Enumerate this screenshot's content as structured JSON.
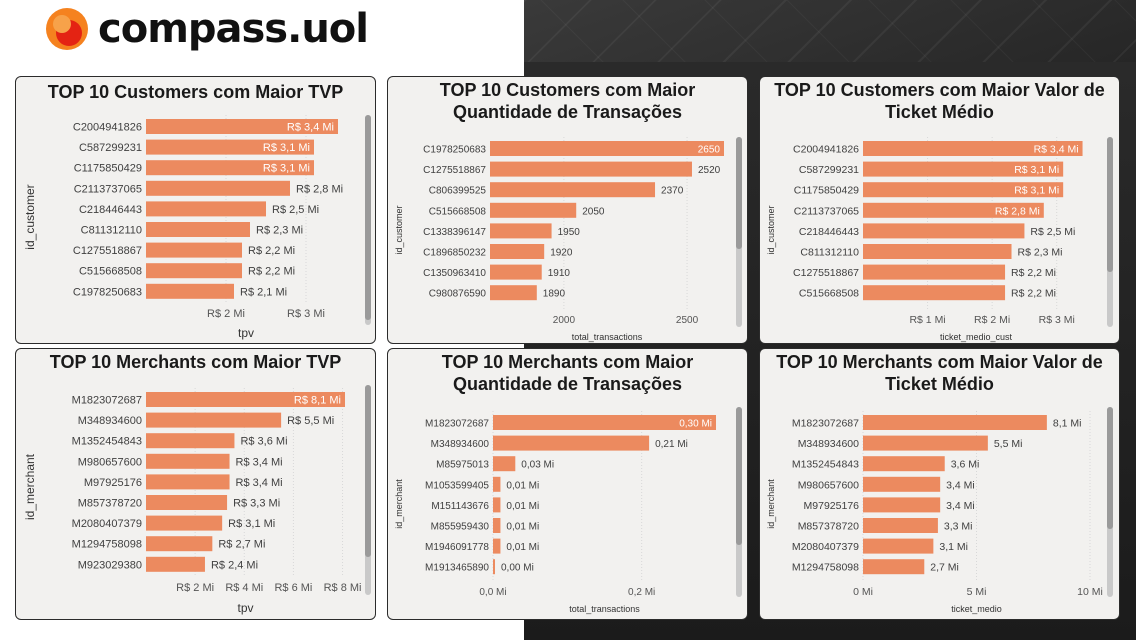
{
  "brand": {
    "name": "compass",
    "suffix": ".uol",
    "logo_colors": {
      "outer": "#f5821f",
      "inner": "#e42313"
    }
  },
  "colors": {
    "bar": "#ec8a5f",
    "card_bg": "#f2f1ef",
    "text": "#404040"
  },
  "chart_data": [
    {
      "type": "bar",
      "orientation": "horizontal",
      "title": "TOP 10 Customers com Maior TVP",
      "ylabel": "id_customer",
      "xlabel": "tpv",
      "categories": [
        "C2004941826",
        "C587299231",
        "C1175850429",
        "C2113737065",
        "C218446443",
        "C811312110",
        "C1275518867",
        "C515668508",
        "C1978250683"
      ],
      "values": [
        3.4,
        3.1,
        3.1,
        2.8,
        2.5,
        2.3,
        2.2,
        2.2,
        2.1
      ],
      "value_labels": [
        "R$ 3,4 Mi",
        "R$ 3,1 Mi",
        "R$ 3,1 Mi",
        "R$ 2,8 Mi",
        "R$ 2,5 Mi",
        "R$ 2,3 Mi",
        "R$ 2,2 Mi",
        "R$ 2,2 Mi",
        "R$ 2,1 Mi"
      ],
      "inside_labels": [
        0,
        1,
        2
      ],
      "xlim": [
        1.0,
        3.5
      ],
      "x_ticks": [
        2,
        3
      ],
      "x_tick_labels": [
        "R$ 2 Mi",
        "R$ 3 Mi"
      ]
    },
    {
      "type": "bar",
      "orientation": "horizontal",
      "title": "TOP 10 Customers com Maior Quantidade de Transações",
      "ylabel": "id_customer",
      "xlabel": "total_transactions",
      "categories": [
        "C1978250683",
        "C1275518867",
        "C806399525",
        "C515668508",
        "C1338396147",
        "C1896850232",
        "C1350963410",
        "C980876590"
      ],
      "values": [
        2650,
        2520,
        2370,
        2050,
        1950,
        1920,
        1910,
        1890
      ],
      "value_labels": [
        "2650",
        "2520",
        "2370",
        "2050",
        "1950",
        "1920",
        "1910",
        "1890"
      ],
      "inside_labels": [
        0
      ],
      "xlim": [
        1700,
        2650
      ],
      "x_ticks": [
        2000,
        2500
      ],
      "x_tick_labels": [
        "2000",
        "2500"
      ]
    },
    {
      "type": "bar",
      "orientation": "horizontal",
      "title": "TOP 10 Customers com Maior Valor de Ticket Médio",
      "ylabel": "id_customer",
      "xlabel": "ticket_medio_cust",
      "categories": [
        "C2004941826",
        "C587299231",
        "C1175850429",
        "C2113737065",
        "C218446443",
        "C811312110",
        "C1275518867",
        "C515668508"
      ],
      "values": [
        3.4,
        3.1,
        3.1,
        2.8,
        2.5,
        2.3,
        2.2,
        2.2
      ],
      "value_labels": [
        "R$ 3,4 Mi",
        "R$ 3,1 Mi",
        "R$ 3,1 Mi",
        "R$ 2,8 Mi",
        "R$ 2,5 Mi",
        "R$ 2,3 Mi",
        "R$ 2,2 Mi",
        "R$ 2,2 Mi"
      ],
      "inside_labels": [
        0,
        1,
        2,
        3
      ],
      "xlim": [
        0.0,
        3.5
      ],
      "x_ticks": [
        1,
        2,
        3
      ],
      "x_tick_labels": [
        "R$ 1 Mi",
        "R$ 2 Mi",
        "R$ 3 Mi"
      ]
    },
    {
      "type": "bar",
      "orientation": "horizontal",
      "title": "TOP 10 Merchants com Maior TVP",
      "ylabel": "id_merchant",
      "xlabel": "tpv",
      "categories": [
        "M1823072687",
        "M348934600",
        "M1352454843",
        "M980657600",
        "M97925176",
        "M857378720",
        "M2080407379",
        "M1294758098",
        "M923029380"
      ],
      "values": [
        8.1,
        5.5,
        3.6,
        3.4,
        3.4,
        3.3,
        3.1,
        2.7,
        2.4
      ],
      "value_labels": [
        "R$ 8,1 Mi",
        "R$ 5,5 Mi",
        "R$ 3,6 Mi",
        "R$ 3,4 Mi",
        "R$ 3,4 Mi",
        "R$ 3,3 Mi",
        "R$ 3,1 Mi",
        "R$ 2,7 Mi",
        "R$ 2,4 Mi"
      ],
      "inside_labels": [
        0
      ],
      "xlim": [
        0.0,
        8.1
      ],
      "x_ticks": [
        2,
        4,
        6,
        8
      ],
      "x_tick_labels": [
        "R$ 2 Mi",
        "R$ 4 Mi",
        "R$ 6 Mi",
        "R$ 8 Mi"
      ]
    },
    {
      "type": "bar",
      "orientation": "horizontal",
      "title": "TOP 10 Merchants com Maior Quantidade de Transações",
      "ylabel": "id_merchant",
      "xlabel": "total_transactions",
      "categories": [
        "M1823072687",
        "M348934600",
        "M85975013",
        "M1053599405",
        "M151143676",
        "M855959430",
        "M1946091778",
        "M1913465890"
      ],
      "values": [
        0.3,
        0.21,
        0.03,
        0.01,
        0.01,
        0.01,
        0.01,
        0.0
      ],
      "value_labels": [
        "0,30 Mi",
        "0,21 Mi",
        "0,03 Mi",
        "0,01 Mi",
        "0,01 Mi",
        "0,01 Mi",
        "0,01 Mi",
        "0,00 Mi"
      ],
      "inside_labels": [
        0
      ],
      "xlim": [
        0.0,
        0.3
      ],
      "x_ticks": [
        0.0,
        0.2
      ],
      "x_tick_labels": [
        "0,0 Mi",
        "0,2 Mi"
      ]
    },
    {
      "type": "bar",
      "orientation": "horizontal",
      "title": "TOP 10 Merchants com Maior Valor de Ticket Médio",
      "ylabel": "id_merchant",
      "xlabel": "ticket_medio",
      "categories": [
        "M1823072687",
        "M348934600",
        "M1352454843",
        "M980657600",
        "M97925176",
        "M857378720",
        "M2080407379",
        "M1294758098"
      ],
      "values": [
        8.1,
        5.5,
        3.6,
        3.4,
        3.4,
        3.3,
        3.1,
        2.7
      ],
      "value_labels": [
        "8,1 Mi",
        "5,5 Mi",
        "3,6 Mi",
        "3,4 Mi",
        "3,4 Mi",
        "3,3 Mi",
        "3,1 Mi",
        "2,7 Mi"
      ],
      "inside_labels": [],
      "xlim": [
        0.0,
        10.0
      ],
      "x_ticks": [
        0,
        5,
        10
      ],
      "x_tick_labels": [
        "0 Mi",
        "5 Mi",
        "10 Mi"
      ]
    }
  ]
}
